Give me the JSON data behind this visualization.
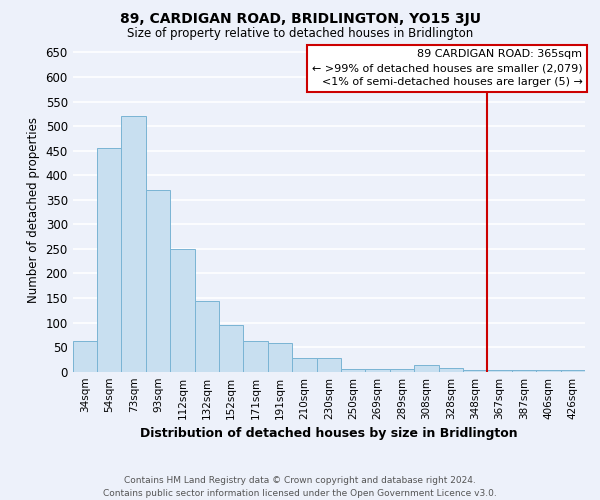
{
  "title": "89, CARDIGAN ROAD, BRIDLINGTON, YO15 3JU",
  "subtitle": "Size of property relative to detached houses in Bridlington",
  "xlabel": "Distribution of detached houses by size in Bridlington",
  "ylabel": "Number of detached properties",
  "bar_labels": [
    "34sqm",
    "54sqm",
    "73sqm",
    "93sqm",
    "112sqm",
    "132sqm",
    "152sqm",
    "171sqm",
    "191sqm",
    "210sqm",
    "230sqm",
    "250sqm",
    "269sqm",
    "289sqm",
    "308sqm",
    "328sqm",
    "348sqm",
    "367sqm",
    "387sqm",
    "406sqm",
    "426sqm"
  ],
  "bar_values": [
    62,
    455,
    520,
    370,
    250,
    143,
    95,
    62,
    58,
    28,
    28,
    5,
    5,
    5,
    13,
    8,
    3,
    3,
    3,
    3,
    3
  ],
  "bar_color": "#c8dff0",
  "bar_edge_color": "#7ab4d4",
  "ylim": [
    0,
    660
  ],
  "yticks": [
    0,
    50,
    100,
    150,
    200,
    250,
    300,
    350,
    400,
    450,
    500,
    550,
    600,
    650
  ],
  "vline_index": 17,
  "vline_color": "#cc0000",
  "annotation_title": "89 CARDIGAN ROAD: 365sqm",
  "annotation_line1": "← >99% of detached houses are smaller (2,079)",
  "annotation_line2": "<1% of semi-detached houses are larger (5) →",
  "annotation_box_color": "white",
  "annotation_box_edgecolor": "#cc0000",
  "footer1": "Contains HM Land Registry data © Crown copyright and database right 2024.",
  "footer2": "Contains public sector information licensed under the Open Government Licence v3.0.",
  "background_color": "#edf1fa",
  "grid_color": "#ffffff"
}
